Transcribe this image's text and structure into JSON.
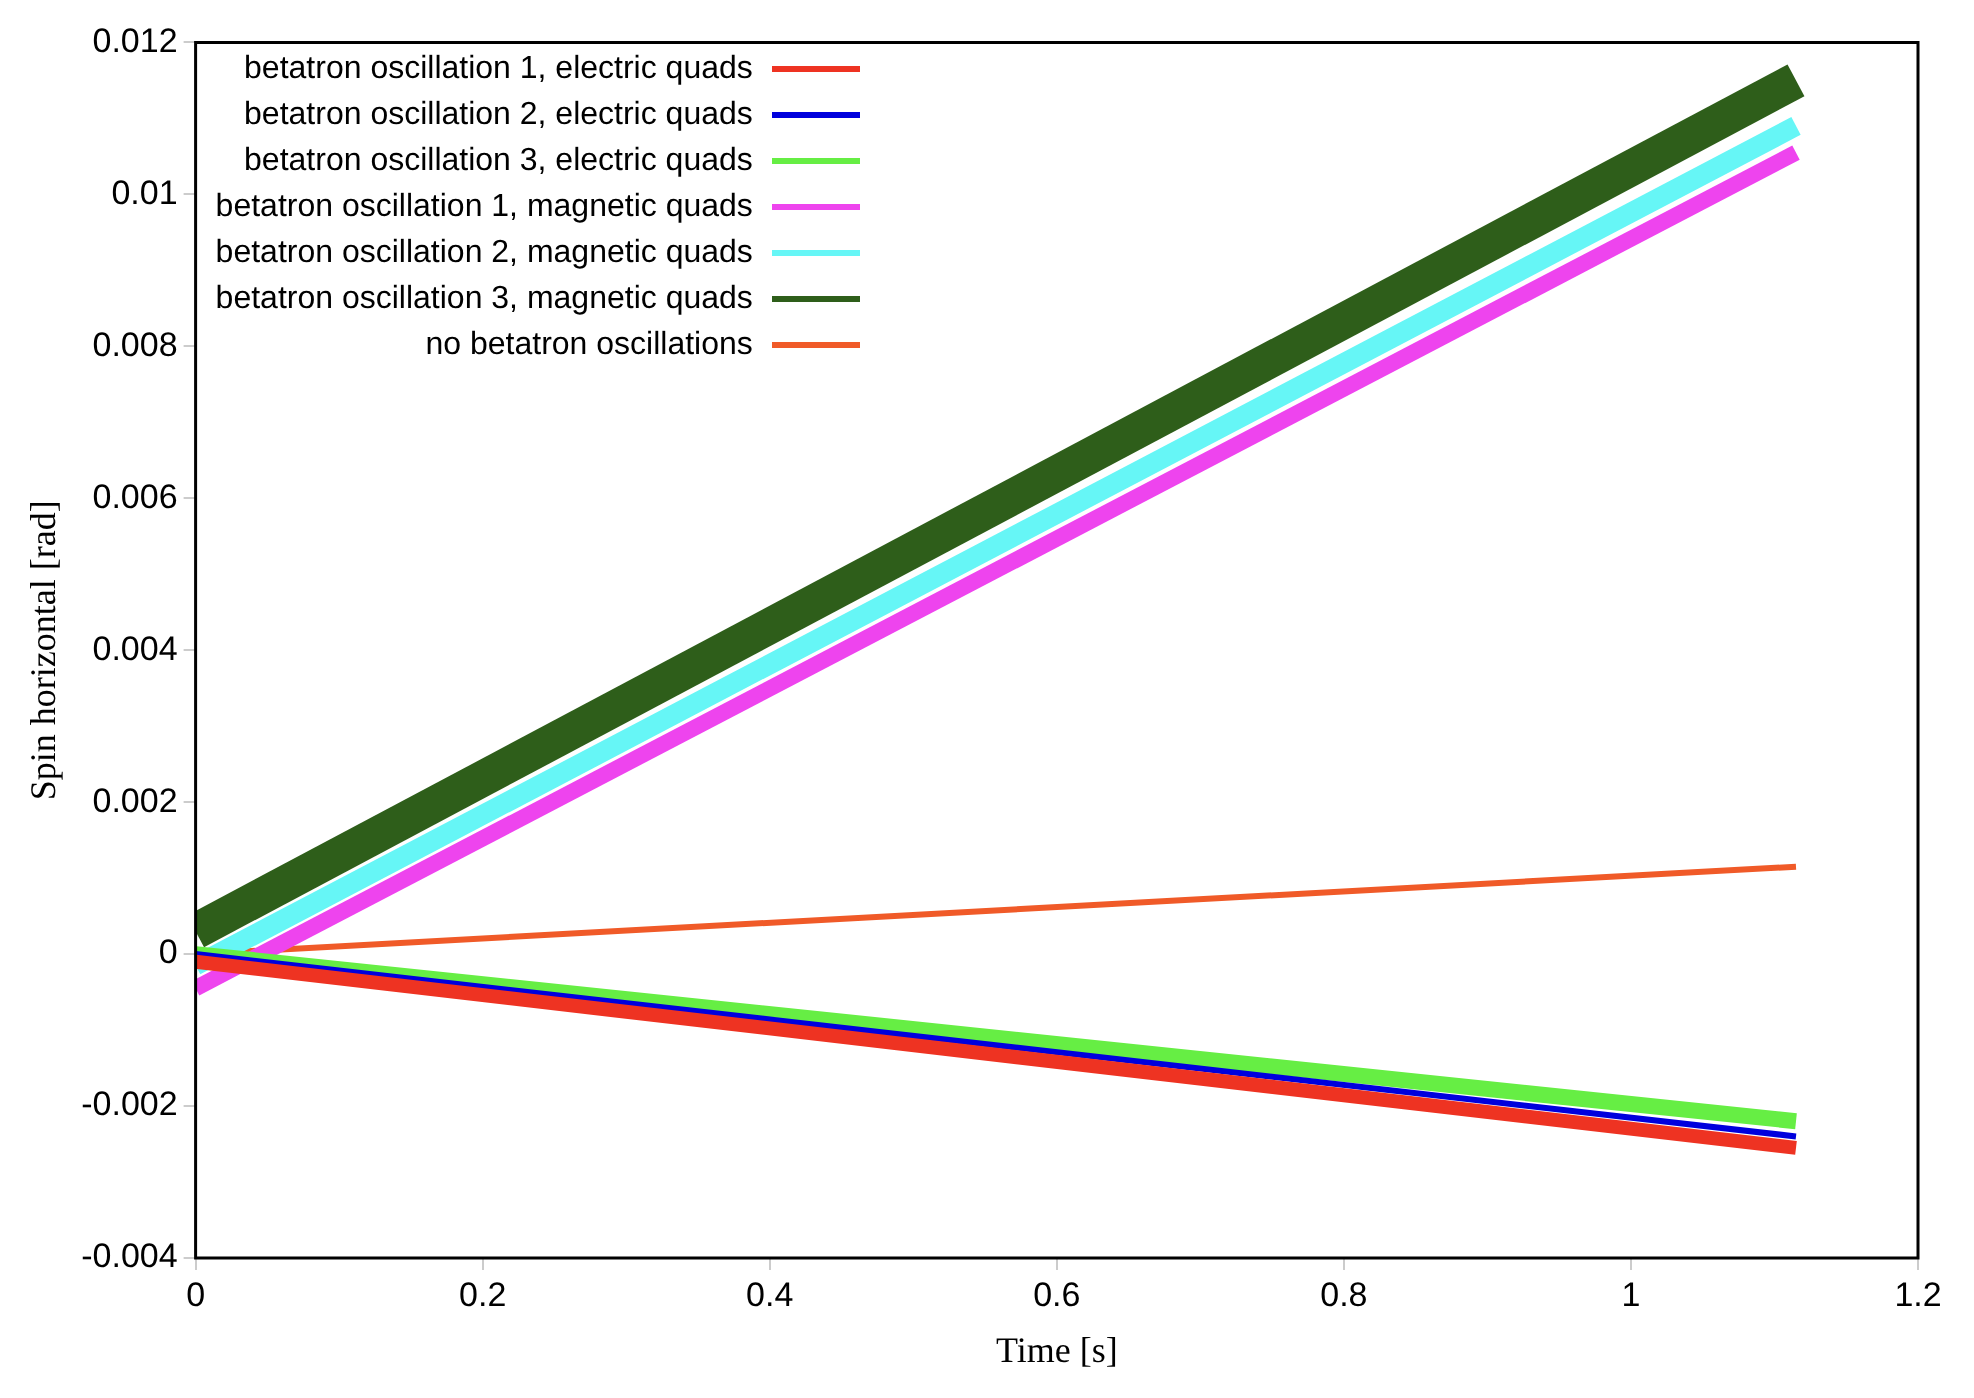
{
  "chart_data": {
    "type": "line",
    "xlabel": "Time [s]",
    "ylabel": "Spin horizontal [rad]",
    "x": [
      0,
      1.115
    ],
    "series": [
      {
        "name": "betatron oscillation 1, electric quads",
        "color": "#ee3322",
        "values": [
          -0.0001,
          -0.00255
        ]
      },
      {
        "name": "betatron oscillation 2, electric quads",
        "color": "#0000dd",
        "values": [
          0,
          -0.0024
        ]
      },
      {
        "name": "betatron oscillation 3, electric quads",
        "color": "#66ee44",
        "values": [
          0,
          -0.0022
        ]
      },
      {
        "name": "betatron oscillation 1, magnetic quads",
        "color": "#ee44ee",
        "values": [
          -0.00045,
          0.01055
        ]
      },
      {
        "name": "betatron oscillation 2, magnetic quads",
        "color": "#66f6f6",
        "values": [
          -0.00015,
          0.0109
        ]
      },
      {
        "name": "betatron oscillation 3, magnetic quads",
        "color": "#2e5e1a",
        "values": [
          0.0003,
          0.0115
        ]
      },
      {
        "name": "no betatron oscillations",
        "color": "#f05a28",
        "values": [
          0,
          0.00115
        ]
      }
    ],
    "xlim": [
      0,
      1.2
    ],
    "xticks": [
      0,
      0.2,
      0.4,
      0.6,
      0.8,
      1,
      1.2
    ],
    "ylim": [
      -0.004,
      0.012
    ],
    "yticks": [
      -0.004,
      -0.002,
      0,
      0.002,
      0.004,
      0.006,
      0.008,
      0.01,
      0.012
    ],
    "legend": "top left",
    "grid": false,
    "marker": "none",
    "line_style": "solid"
  }
}
